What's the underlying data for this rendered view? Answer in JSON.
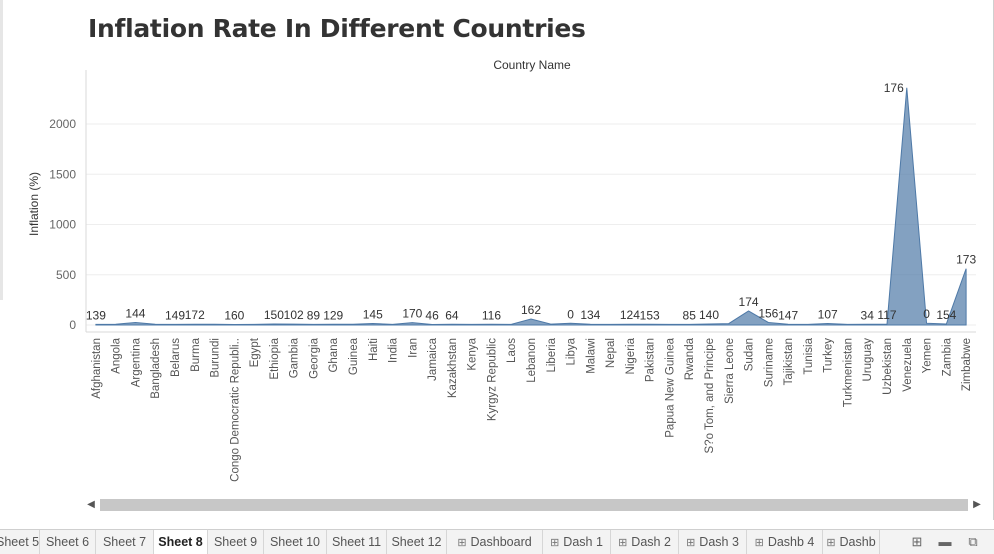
{
  "chart_data": {
    "type": "area",
    "title": "Inflation Rate In Different Countries",
    "column_header": "Country Name",
    "ylabel": "Inflation (%)",
    "ylim": [
      0,
      2400
    ],
    "yticks": [
      0,
      500,
      1000,
      1500,
      2000
    ],
    "color": "#4e79a7",
    "categories": [
      "Afghanistan",
      "Angola",
      "Argentina",
      "Bangladesh",
      "Belarus",
      "Burma",
      "Burundi",
      "Congo Democratic Republi..",
      "Egypt",
      "Ethiopia",
      "Gambia",
      "Georgia",
      "Ghana",
      "Guinea",
      "Haiti",
      "India",
      "Iran",
      "Jamaica",
      "Kazakhstan",
      "Kenya",
      "Kyrgyz Republic",
      "Laos",
      "Lebanon",
      "Liberia",
      "Libya",
      "Malawi",
      "Nepal",
      "Nigeria",
      "Pakistan",
      "Papua New Guinea",
      "Rwanda",
      "S?o Tom, and Principe",
      "Sierra Leone",
      "Sudan",
      "Suriname",
      "Tajikistan",
      "Tunisia",
      "Turkey",
      "Turkmenistan",
      "Uruguay",
      "Uzbekistan",
      "Venezuela",
      "Yemen",
      "Zambia",
      "Zimbabwe"
    ],
    "values": [
      6,
      8,
      25,
      7,
      6,
      8,
      7,
      5,
      6,
      10,
      9,
      6,
      7,
      8,
      15,
      6,
      23,
      5,
      7,
      6,
      7,
      6,
      60,
      9,
      17,
      8,
      6,
      8,
      7,
      6,
      6,
      10,
      14,
      140,
      25,
      7,
      6,
      15,
      6,
      7,
      8,
      2360,
      18,
      10,
      560
    ],
    "data_labels": [
      {
        "category": "Afghanistan",
        "label": "139"
      },
      {
        "category": "Argentina",
        "label": "144"
      },
      {
        "category": "Belarus",
        "label": "149"
      },
      {
        "category": "Burma",
        "label": "172"
      },
      {
        "category": "Congo Democratic Republi..",
        "label": "160"
      },
      {
        "category": "Ethiopia",
        "label": "150"
      },
      {
        "category": "Gambia",
        "label": "102"
      },
      {
        "category": "Georgia",
        "label": "89"
      },
      {
        "category": "Ghana",
        "label": "129"
      },
      {
        "category": "Haiti",
        "label": "145"
      },
      {
        "category": "Iran",
        "label": "170"
      },
      {
        "category": "Jamaica",
        "label": "46"
      },
      {
        "category": "Kazakhstan",
        "label": "64"
      },
      {
        "category": "Kyrgyz Republic",
        "label": "116"
      },
      {
        "category": "Lebanon",
        "label": "162"
      },
      {
        "category": "Libya",
        "label": "0"
      },
      {
        "category": "Malawi",
        "label": "134"
      },
      {
        "category": "Nigeria",
        "label": "124"
      },
      {
        "category": "Pakistan",
        "label": "153"
      },
      {
        "category": "Rwanda",
        "label": "85"
      },
      {
        "category": "S?o Tom, and Principe",
        "label": "140"
      },
      {
        "category": "Sudan",
        "label": "174"
      },
      {
        "category": "Suriname",
        "label": "156"
      },
      {
        "category": "Tajikistan",
        "label": "147"
      },
      {
        "category": "Turkey",
        "label": "107"
      },
      {
        "category": "Uruguay",
        "label": "34"
      },
      {
        "category": "Venezuela",
        "label": "176"
      },
      {
        "category": "Uzbekistan",
        "label": "117"
      },
      {
        "category": "Yemen",
        "label": "0"
      },
      {
        "category": "Zambia",
        "label": "154"
      },
      {
        "category": "Zimbabwe",
        "label": "173"
      }
    ],
    "grid": true,
    "legend": "none"
  },
  "sheet_tabs": [
    {
      "label": "Sheet 5",
      "active": false,
      "icon": ""
    },
    {
      "label": "Sheet 6",
      "active": false,
      "icon": ""
    },
    {
      "label": "Sheet 7",
      "active": false,
      "icon": ""
    },
    {
      "label": "Sheet 8",
      "active": true,
      "icon": ""
    },
    {
      "label": "Sheet 9",
      "active": false,
      "icon": ""
    },
    {
      "label": "Sheet 10",
      "active": false,
      "icon": ""
    },
    {
      "label": "Sheet 11",
      "active": false,
      "icon": ""
    },
    {
      "label": "Sheet 12",
      "active": false,
      "icon": ""
    },
    {
      "label": "Dashboard",
      "active": false,
      "icon": "dashboard-icon"
    },
    {
      "label": "Dash 1",
      "active": false,
      "icon": "dashboard-icon"
    },
    {
      "label": "Dash 2",
      "active": false,
      "icon": "dashboard-icon"
    },
    {
      "label": "Dash 3",
      "active": false,
      "icon": "dashboard-icon"
    },
    {
      "label": "Dashb 4",
      "active": false,
      "icon": "dashboard-icon"
    },
    {
      "label": "Dashb",
      "active": false,
      "icon": "dashboard-icon"
    }
  ],
  "tab_toolbar": [
    {
      "name": "new-worksheet-icon",
      "glyph": "⊞"
    },
    {
      "name": "new-dashboard-icon",
      "glyph": "▬"
    },
    {
      "name": "new-story-icon",
      "glyph": "⧉"
    }
  ]
}
